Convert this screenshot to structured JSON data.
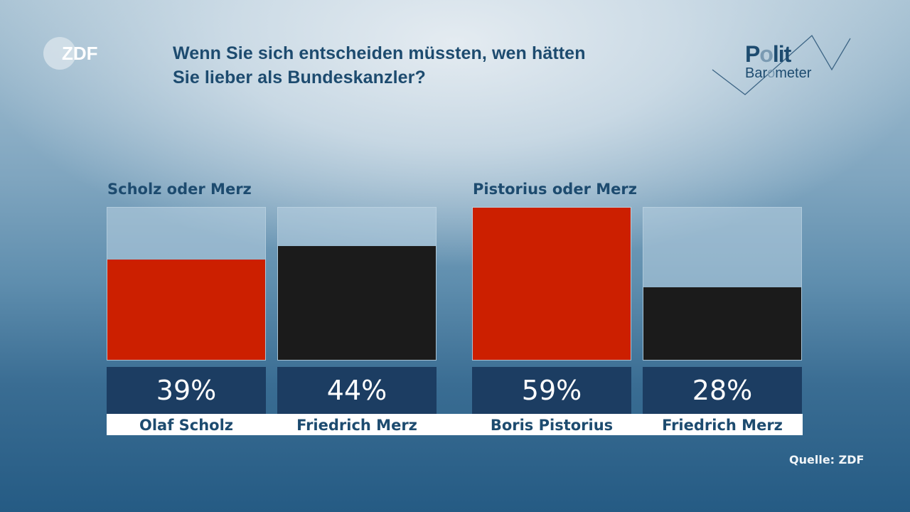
{
  "branding": {
    "broadcaster_logo_text": "ZDF",
    "series_logo": {
      "line1": "Polit",
      "line2": "Barometer"
    }
  },
  "title_lines": [
    "Wenn Sie sich entscheiden müssten, wen hätten",
    "Sie lieber als Bundeskanzler?"
  ],
  "source": "Quelle: ZDF",
  "colors": {
    "spd_red": "#cc1f00",
    "cdu_black": "#1b1b1b",
    "value_box": "#1c3d62",
    "text_dark_blue": "#1d4b6f"
  },
  "chart_data": {
    "type": "bar",
    "title": "Wenn Sie sich entscheiden müssten, wen hätten Sie lieber als Bundeskanzler?",
    "unit": "%",
    "scale_max": 59,
    "groups": [
      {
        "label": "Scholz oder Merz",
        "bars": [
          {
            "name": "Olaf Scholz",
            "value": 39,
            "display": "39%",
            "color": "#cc1f00"
          },
          {
            "name": "Friedrich Merz",
            "value": 44,
            "display": "44%",
            "color": "#1b1b1b"
          }
        ]
      },
      {
        "label": "Pistorius oder Merz",
        "bars": [
          {
            "name": "Boris Pistorius",
            "value": 59,
            "display": "59%",
            "color": "#cc1f00"
          },
          {
            "name": "Friedrich Merz",
            "value": 28,
            "display": "28%",
            "color": "#1b1b1b"
          }
        ]
      }
    ],
    "grid": false,
    "legend": "none"
  }
}
